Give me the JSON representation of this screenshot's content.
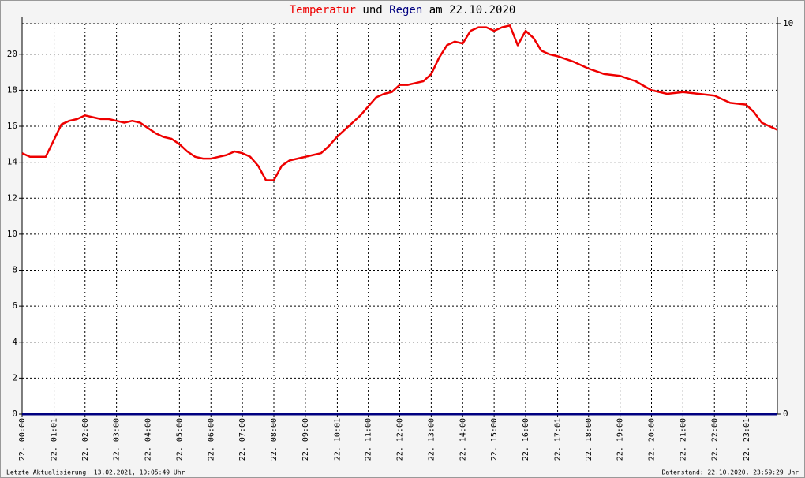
{
  "chart_data": {
    "type": "line",
    "title_parts": [
      "und",
      "am 22.10.2020"
    ],
    "xlim": [
      0,
      24
    ],
    "xticks": [
      {
        "value": 0,
        "label": "22. 00:00"
      },
      {
        "value": 1.017,
        "label": "22. 01:01"
      },
      {
        "value": 2,
        "label": "22. 02:00"
      },
      {
        "value": 3,
        "label": "22. 03:00"
      },
      {
        "value": 4,
        "label": "22. 04:00"
      },
      {
        "value": 5,
        "label": "22. 05:00"
      },
      {
        "value": 6,
        "label": "22. 06:00"
      },
      {
        "value": 7,
        "label": "22. 07:00"
      },
      {
        "value": 8,
        "label": "22. 08:00"
      },
      {
        "value": 9,
        "label": "22. 09:00"
      },
      {
        "value": 10.017,
        "label": "22. 10:01"
      },
      {
        "value": 11,
        "label": "22. 11:00"
      },
      {
        "value": 12,
        "label": "22. 12:00"
      },
      {
        "value": 13,
        "label": "22. 13:00"
      },
      {
        "value": 14,
        "label": "22. 14:00"
      },
      {
        "value": 15,
        "label": "22. 15:00"
      },
      {
        "value": 16,
        "label": "22. 16:00"
      },
      {
        "value": 17.017,
        "label": "22. 17:01"
      },
      {
        "value": 18,
        "label": "22. 18:00"
      },
      {
        "value": 19,
        "label": "22. 19:00"
      },
      {
        "value": 20,
        "label": "22. 20:00"
      },
      {
        "value": 21,
        "label": "22. 21:00"
      },
      {
        "value": 22,
        "label": "22. 22:00"
      },
      {
        "value": 23.017,
        "label": "22. 23:01"
      }
    ],
    "ylim": [
      0,
      21.7
    ],
    "yticks": [
      0,
      2,
      4,
      6,
      8,
      10,
      12,
      14,
      16,
      18,
      20
    ],
    "y2lim": [
      0,
      10
    ],
    "y2ticks": [
      0,
      10
    ],
    "grid": true,
    "series": [
      {
        "name": "Temperatur",
        "color": "#ee0000",
        "axis": "y",
        "x": [
          0,
          0.25,
          0.5,
          0.75,
          1,
          1.25,
          1.5,
          1.75,
          2,
          2.25,
          2.5,
          2.75,
          3,
          3.25,
          3.5,
          3.75,
          4,
          4.25,
          4.5,
          4.75,
          5,
          5.25,
          5.5,
          5.75,
          6,
          6.25,
          6.5,
          6.75,
          7,
          7.25,
          7.5,
          7.75,
          8,
          8.25,
          8.5,
          8.75,
          9,
          9.25,
          9.5,
          9.75,
          10,
          10.25,
          10.5,
          10.75,
          11,
          11.25,
          11.5,
          11.75,
          12,
          12.25,
          12.5,
          12.75,
          13,
          13.25,
          13.5,
          13.75,
          14,
          14.25,
          14.5,
          14.75,
          15,
          15.25,
          15.5,
          15.75,
          16,
          16.25,
          16.5,
          16.75,
          17,
          17.5,
          18,
          18.5,
          19,
          19.5,
          20,
          20.5,
          21,
          21.5,
          22,
          22.5,
          23,
          23.25,
          23.5,
          24
        ],
        "values": [
          14.5,
          14.3,
          14.3,
          14.3,
          15.2,
          16.1,
          16.3,
          16.4,
          16.6,
          16.5,
          16.4,
          16.4,
          16.3,
          16.2,
          16.3,
          16.2,
          15.9,
          15.6,
          15.4,
          15.3,
          15.0,
          14.6,
          14.3,
          14.2,
          14.2,
          14.3,
          14.4,
          14.6,
          14.5,
          14.3,
          13.8,
          13.0,
          13.0,
          13.8,
          14.1,
          14.2,
          14.3,
          14.4,
          14.5,
          14.9,
          15.4,
          15.8,
          16.2,
          16.6,
          17.1,
          17.6,
          17.8,
          17.9,
          18.3,
          18.3,
          18.4,
          18.5,
          18.9,
          19.8,
          20.5,
          20.7,
          20.6,
          21.3,
          21.5,
          21.5,
          21.3,
          21.5,
          21.6,
          20.5,
          21.3,
          20.9,
          20.2,
          20.0,
          19.9,
          19.6,
          19.2,
          18.9,
          18.8,
          18.5,
          18.0,
          17.8,
          17.9,
          17.8,
          17.7,
          17.3,
          17.2,
          16.8,
          16.2,
          15.8
        ]
      },
      {
        "name": "Regen",
        "color": "#000080",
        "axis": "y2",
        "x": [
          0,
          24
        ],
        "values": [
          0,
          0
        ]
      }
    ]
  },
  "footer": {
    "left": "Letzte Aktualisierung: 13.02.2021, 10:05:49 Uhr",
    "right": "Datenstand: 22.10.2020, 23:59:29 Uhr"
  }
}
